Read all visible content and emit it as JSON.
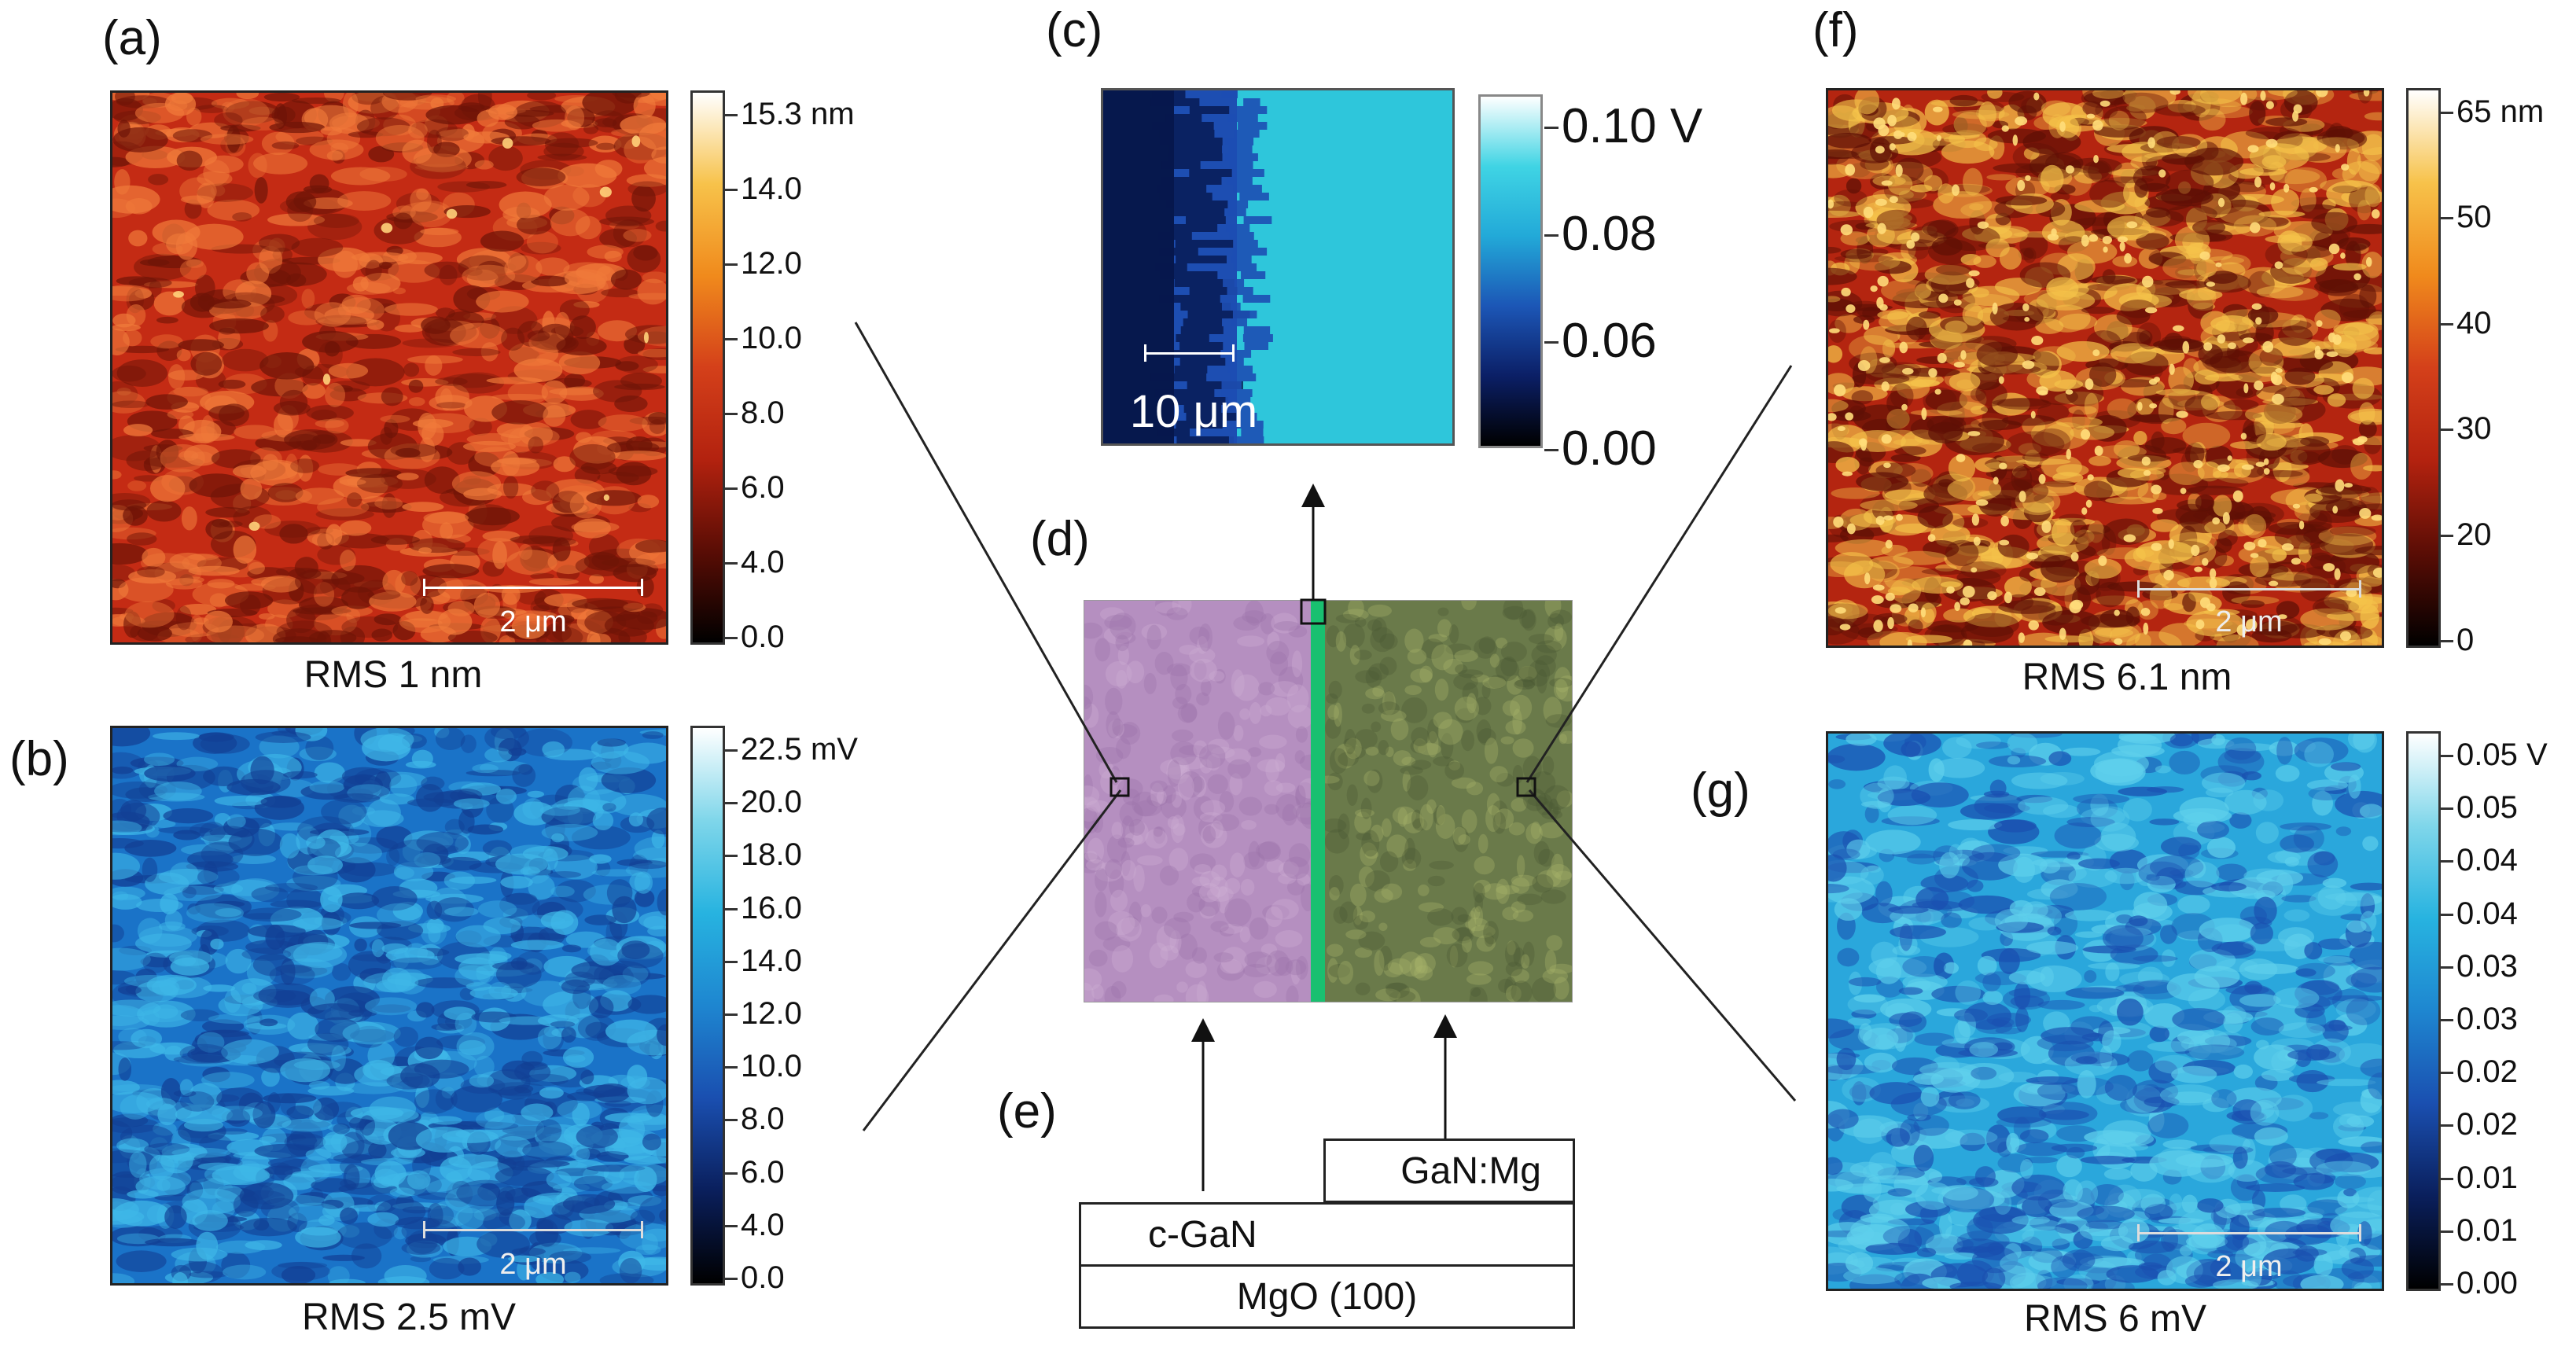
{
  "panels": {
    "a": {
      "label": "(a)",
      "rms": "RMS 1 nm",
      "scale": "2 μm",
      "colorbar": {
        "ticks": [
          "15.3 nm",
          "14.0",
          "12.0",
          "10.0",
          "8.0",
          "6.0",
          "4.0",
          "0.0"
        ],
        "colors": [
          "#000000",
          "#5a0d05",
          "#b3220f",
          "#d4401a",
          "#f08a1c",
          "#f7c24a",
          "#ffffff"
        ]
      },
      "image_colors": {
        "base": "#c42b14",
        "dark": "#6e1407",
        "light": "#f07a3a"
      }
    },
    "b": {
      "label": "(b)",
      "rms": "RMS 2.5 mV",
      "scale": "2 μm",
      "colorbar": {
        "ticks": [
          "22.5 mV",
          "20.0",
          "18.0",
          "16.0",
          "14.0",
          "12.0",
          "10.0",
          "8.0",
          "6.0",
          "4.0",
          "0.0"
        ],
        "colors": [
          "#000000",
          "#0a1f5c",
          "#1a4fb0",
          "#1e86d0",
          "#27b3e0",
          "#7fd6ea",
          "#ffffff"
        ]
      },
      "image_colors": {
        "base": "#1a73c8",
        "dark": "#123f94",
        "light": "#3fb8e8"
      }
    },
    "c": {
      "label": "(c)",
      "scale": "10 μm",
      "colorbar": {
        "ticks": [
          "0.10 V",
          "0.08",
          "0.06",
          "0.00"
        ],
        "colors": [
          "#000000",
          "#0b1f66",
          "#1c56b6",
          "#22a9d8",
          "#3fd4e4",
          "#ffffff"
        ]
      },
      "image_colors": {
        "dark": "#06184d",
        "mid": "#1d4eb2",
        "light": "#2ec6db"
      }
    },
    "d": {
      "label": "(d)",
      "image_colors": {
        "left": "#b58fc0",
        "right": "#6a7a4a",
        "stripe": "#19c070"
      }
    },
    "e": {
      "label": "(e)",
      "layers": {
        "top": "GaN:Mg",
        "middle": "c-GaN",
        "bottom": "MgO (100)"
      }
    },
    "f": {
      "label": "(f)",
      "rms": "RMS 6.1 nm",
      "scale": "2 μm",
      "colorbar": {
        "ticks": [
          "65 nm",
          "50",
          "40",
          "30",
          "20",
          "0"
        ],
        "colors": [
          "#000000",
          "#5a0d05",
          "#b3220f",
          "#d4401a",
          "#f08a1c",
          "#f7c24a",
          "#ffffff"
        ]
      },
      "image_colors": {
        "base": "#b42510",
        "dark": "#5e1005",
        "light": "#f5c34a"
      }
    },
    "g": {
      "label": "(g)",
      "rms": "RMS 6 mV",
      "scale": "2 μm",
      "colorbar": {
        "ticks": [
          "0.05 V",
          "0.05",
          "0.04",
          "0.04",
          "0.03",
          "0.03",
          "0.02",
          "0.02",
          "0.01",
          "0.01",
          "0.00"
        ],
        "colors": [
          "#000000",
          "#0a1f5c",
          "#1a4fb0",
          "#1e86d0",
          "#27b3e0",
          "#7fd6ea",
          "#ffffff"
        ]
      },
      "image_colors": {
        "base": "#2aa7dc",
        "dark": "#1a4fb0",
        "light": "#5fd0ec"
      }
    }
  }
}
